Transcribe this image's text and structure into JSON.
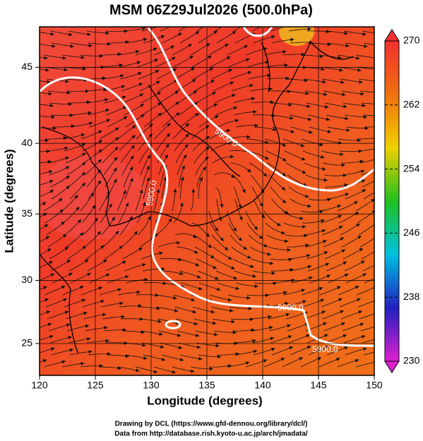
{
  "chart_data": {
    "type": "map",
    "title": "MSM 06Z29Jul2026 (500.0hPa)",
    "x_label": "Longitude (degrees)",
    "y_label": "Latitude  (degrees)",
    "xlim": [
      120,
      150
    ],
    "xticks": [
      120,
      125,
      130,
      135,
      140,
      145,
      150
    ],
    "ylim": [
      22.4,
      47.5
    ],
    "yticks": [
      25,
      30,
      35,
      40,
      45
    ],
    "y_projection": "mercator",
    "grid": true,
    "contour_labels": [
      "5900.0",
      "5900.0",
      "5900.0",
      "5900.0"
    ],
    "colorbar": {
      "lim": [
        230,
        270
      ],
      "ticks": [
        230,
        238,
        246,
        254,
        262,
        270
      ],
      "colors": [
        "#e020d0",
        "#2020c0",
        "#00c0e0",
        "#20c020",
        "#f0d000",
        "#f07010",
        "#f03030"
      ]
    },
    "footer": [
      "Drawing by DCL (https://www.gfd-dennou.org/library/dcl/)",
      "Data from http://database.rish.kyoto-u.ac.jp/arch/jmadata/"
    ]
  }
}
